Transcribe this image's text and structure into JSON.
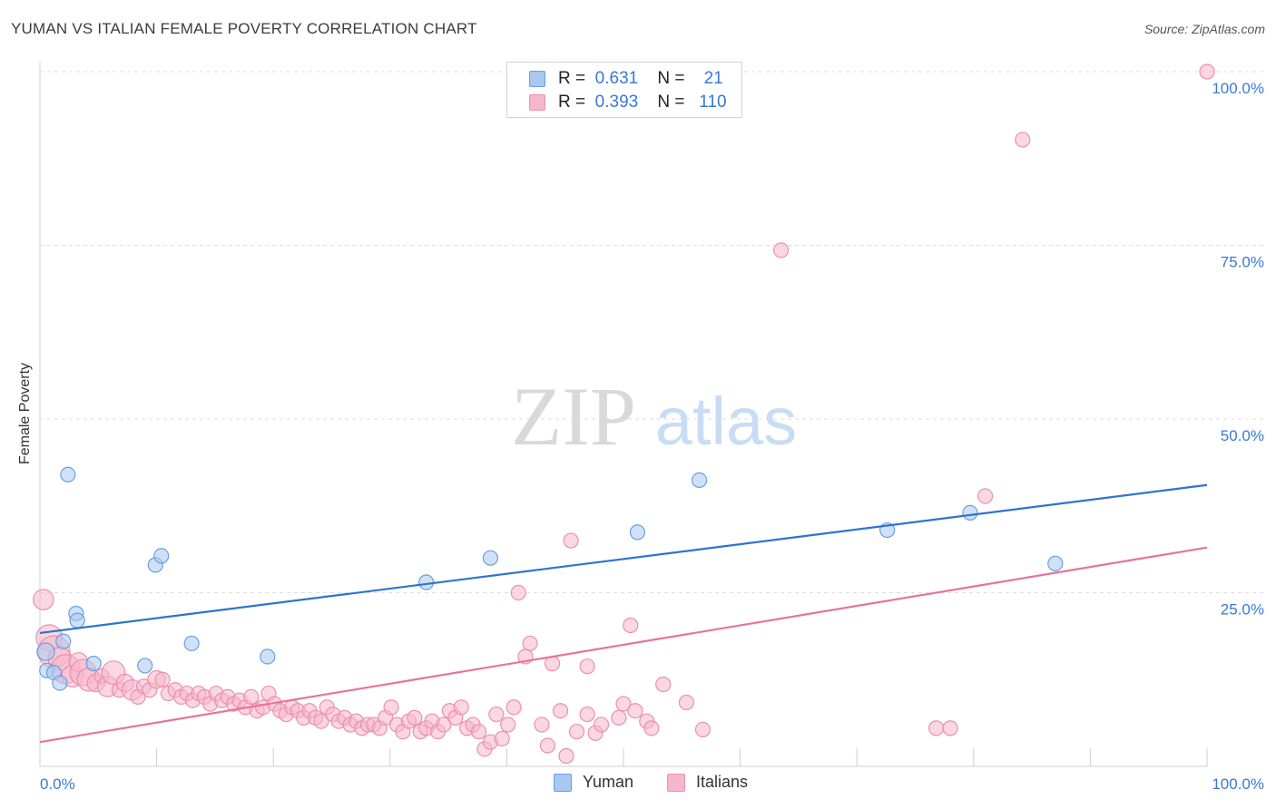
{
  "title": "YUMAN VS ITALIAN FEMALE POVERTY CORRELATION CHART",
  "source": "Source: ZipAtlas.com",
  "watermark": {
    "zip": "ZIP",
    "atlas": "atlas"
  },
  "legend": {
    "rows": [
      {
        "r_label": "R =",
        "r_value": "0.631",
        "n_label": "N =",
        "n_value": "21"
      },
      {
        "r_label": "R =",
        "r_value": "0.393",
        "n_label": "N =",
        "n_value": "110"
      }
    ]
  },
  "bottom_legend": {
    "yuman": "Yuman",
    "italians": "Italians"
  },
  "colors": {
    "yuman_fill": "#a9c8f0",
    "yuman_stroke": "#6a9fdc",
    "yuman_line": "#2f72d0",
    "italians_fill": "#f6b6cb",
    "italians_stroke": "#ec8fb0",
    "italians_line": "#e8739c",
    "tick_label": "#3a78d8",
    "grid": "#dddddd"
  },
  "chart_data": {
    "type": "scatter",
    "title": "YUMAN VS ITALIAN FEMALE POVERTY CORRELATION CHART",
    "xlabel": "",
    "ylabel": "Female Poverty",
    "xlim": [
      0,
      100
    ],
    "ylim": [
      0,
      100
    ],
    "x_tick_labels": [
      "0.0%",
      "100.0%"
    ],
    "y_ticks": [
      25,
      50,
      75,
      100
    ],
    "y_tick_labels": [
      "25.0%",
      "50.0%",
      "75.0%",
      "100.0%"
    ],
    "grid": true,
    "legend_position": "top-center",
    "series": [
      {
        "name": "Yuman",
        "r": 0.631,
        "n": 21,
        "trend": {
          "x": [
            0,
            100
          ],
          "y": [
            19.2,
            40.5
          ]
        },
        "points": [
          {
            "x": 0.5,
            "y": 16.5,
            "s": 1.2
          },
          {
            "x": 0.6,
            "y": 13.8,
            "s": 1
          },
          {
            "x": 1.2,
            "y": 13.5,
            "s": 1
          },
          {
            "x": 1.7,
            "y": 12.0,
            "s": 1
          },
          {
            "x": 2.0,
            "y": 18.0,
            "s": 1
          },
          {
            "x": 2.4,
            "y": 42.0,
            "s": 1
          },
          {
            "x": 3.1,
            "y": 22.0,
            "s": 1
          },
          {
            "x": 3.2,
            "y": 21.0,
            "s": 1
          },
          {
            "x": 4.6,
            "y": 14.8,
            "s": 1
          },
          {
            "x": 9.0,
            "y": 14.5,
            "s": 1
          },
          {
            "x": 9.9,
            "y": 29.0,
            "s": 1
          },
          {
            "x": 10.4,
            "y": 30.3,
            "s": 1
          },
          {
            "x": 13.0,
            "y": 17.7,
            "s": 1
          },
          {
            "x": 19.5,
            "y": 15.8,
            "s": 1
          },
          {
            "x": 33.1,
            "y": 26.5,
            "s": 1
          },
          {
            "x": 38.6,
            "y": 30.0,
            "s": 1
          },
          {
            "x": 51.2,
            "y": 33.7,
            "s": 1
          },
          {
            "x": 56.5,
            "y": 41.2,
            "s": 1
          },
          {
            "x": 72.6,
            "y": 34.0,
            "s": 1
          },
          {
            "x": 79.7,
            "y": 36.5,
            "s": 1
          },
          {
            "x": 87.0,
            "y": 29.2,
            "s": 1
          }
        ]
      },
      {
        "name": "Italians",
        "r": 0.393,
        "n": 110,
        "trend": {
          "x": [
            0,
            100
          ],
          "y": [
            3.5,
            31.5
          ]
        },
        "points": [
          {
            "x": 0.3,
            "y": 24.0,
            "s": 1.4
          },
          {
            "x": 0.8,
            "y": 18.5,
            "s": 1.8
          },
          {
            "x": 1.2,
            "y": 16.5,
            "s": 2.2
          },
          {
            "x": 1.7,
            "y": 15.5,
            "s": 1.6
          },
          {
            "x": 2.2,
            "y": 14.0,
            "s": 2.0
          },
          {
            "x": 2.8,
            "y": 13.0,
            "s": 1.5
          },
          {
            "x": 3.3,
            "y": 15.0,
            "s": 1.3
          },
          {
            "x": 3.7,
            "y": 13.5,
            "s": 1.8
          },
          {
            "x": 4.2,
            "y": 12.5,
            "s": 1.6
          },
          {
            "x": 4.8,
            "y": 12.0,
            "s": 1.2
          },
          {
            "x": 5.3,
            "y": 13.0,
            "s": 1.0
          },
          {
            "x": 5.8,
            "y": 11.5,
            "s": 1.4
          },
          {
            "x": 6.3,
            "y": 13.5,
            "s": 1.6
          },
          {
            "x": 6.8,
            "y": 11.0,
            "s": 1.0
          },
          {
            "x": 7.3,
            "y": 12.0,
            "s": 1.2
          },
          {
            "x": 7.9,
            "y": 11.0,
            "s": 1.4
          },
          {
            "x": 8.4,
            "y": 10.0,
            "s": 1.0
          },
          {
            "x": 8.9,
            "y": 11.5,
            "s": 1.0
          },
          {
            "x": 9.4,
            "y": 11.0,
            "s": 1.0
          },
          {
            "x": 10.0,
            "y": 12.5,
            "s": 1.2
          },
          {
            "x": 10.5,
            "y": 12.5,
            "s": 1.0
          },
          {
            "x": 11.0,
            "y": 10.5,
            "s": 1.0
          },
          {
            "x": 11.6,
            "y": 11.0,
            "s": 1.0
          },
          {
            "x": 12.1,
            "y": 10.0,
            "s": 1.0
          },
          {
            "x": 12.6,
            "y": 10.5,
            "s": 1.0
          },
          {
            "x": 13.1,
            "y": 9.5,
            "s": 1.0
          },
          {
            "x": 13.6,
            "y": 10.5,
            "s": 1.0
          },
          {
            "x": 14.1,
            "y": 10.0,
            "s": 1.0
          },
          {
            "x": 14.6,
            "y": 9.0,
            "s": 1.0
          },
          {
            "x": 15.1,
            "y": 10.5,
            "s": 1.0
          },
          {
            "x": 15.6,
            "y": 9.5,
            "s": 1.0
          },
          {
            "x": 16.1,
            "y": 10.0,
            "s": 1.0
          },
          {
            "x": 16.6,
            "y": 9.0,
            "s": 1.0
          },
          {
            "x": 17.1,
            "y": 9.5,
            "s": 1.0
          },
          {
            "x": 17.6,
            "y": 8.5,
            "s": 1.0
          },
          {
            "x": 18.1,
            "y": 10.0,
            "s": 1.0
          },
          {
            "x": 18.6,
            "y": 8.0,
            "s": 1.0
          },
          {
            "x": 19.1,
            "y": 8.5,
            "s": 1.0
          },
          {
            "x": 19.6,
            "y": 10.5,
            "s": 1.0
          },
          {
            "x": 20.1,
            "y": 9.0,
            "s": 1.0
          },
          {
            "x": 20.6,
            "y": 8.0,
            "s": 1.0
          },
          {
            "x": 21.1,
            "y": 7.5,
            "s": 1.0
          },
          {
            "x": 21.6,
            "y": 8.5,
            "s": 1.0
          },
          {
            "x": 22.1,
            "y": 8.0,
            "s": 1.0
          },
          {
            "x": 22.6,
            "y": 7.0,
            "s": 1.0
          },
          {
            "x": 23.1,
            "y": 8.0,
            "s": 1.0
          },
          {
            "x": 23.6,
            "y": 7.0,
            "s": 1.0
          },
          {
            "x": 24.1,
            "y": 6.5,
            "s": 1.0
          },
          {
            "x": 24.6,
            "y": 8.5,
            "s": 1.0
          },
          {
            "x": 25.1,
            "y": 7.5,
            "s": 1.0
          },
          {
            "x": 25.6,
            "y": 6.5,
            "s": 1.0
          },
          {
            "x": 26.1,
            "y": 7.0,
            "s": 1.0
          },
          {
            "x": 26.6,
            "y": 6.0,
            "s": 1.0
          },
          {
            "x": 27.1,
            "y": 6.5,
            "s": 1.0
          },
          {
            "x": 27.6,
            "y": 5.5,
            "s": 1.0
          },
          {
            "x": 28.1,
            "y": 6.0,
            "s": 1.0
          },
          {
            "x": 28.6,
            "y": 6.0,
            "s": 1.0
          },
          {
            "x": 29.1,
            "y": 5.5,
            "s": 1.0
          },
          {
            "x": 29.6,
            "y": 7.0,
            "s": 1.0
          },
          {
            "x": 30.1,
            "y": 8.5,
            "s": 1.0
          },
          {
            "x": 30.6,
            "y": 6.0,
            "s": 1.0
          },
          {
            "x": 31.1,
            "y": 5.0,
            "s": 1.0
          },
          {
            "x": 31.6,
            "y": 6.5,
            "s": 1.0
          },
          {
            "x": 32.1,
            "y": 7.0,
            "s": 1.0
          },
          {
            "x": 32.6,
            "y": 5.0,
            "s": 1.0
          },
          {
            "x": 33.1,
            "y": 5.5,
            "s": 1.0
          },
          {
            "x": 33.6,
            "y": 6.5,
            "s": 1.0
          },
          {
            "x": 34.1,
            "y": 5.0,
            "s": 1.0
          },
          {
            "x": 34.6,
            "y": 6.0,
            "s": 1.0
          },
          {
            "x": 35.1,
            "y": 8.0,
            "s": 1.0
          },
          {
            "x": 35.6,
            "y": 7.0,
            "s": 1.0
          },
          {
            "x": 36.1,
            "y": 8.5,
            "s": 1.0
          },
          {
            "x": 36.6,
            "y": 5.5,
            "s": 1.0
          },
          {
            "x": 37.1,
            "y": 6.0,
            "s": 1.0
          },
          {
            "x": 37.6,
            "y": 5.0,
            "s": 1.0
          },
          {
            "x": 38.1,
            "y": 2.5,
            "s": 1.0
          },
          {
            "x": 38.6,
            "y": 3.5,
            "s": 1.0
          },
          {
            "x": 39.1,
            "y": 7.5,
            "s": 1.0
          },
          {
            "x": 39.6,
            "y": 4.0,
            "s": 1.0
          },
          {
            "x": 40.1,
            "y": 6.0,
            "s": 1.0
          },
          {
            "x": 40.6,
            "y": 8.5,
            "s": 1.0
          },
          {
            "x": 41.0,
            "y": 25.0,
            "s": 1.0
          },
          {
            "x": 41.6,
            "y": 15.8,
            "s": 1.0
          },
          {
            "x": 42.0,
            "y": 17.7,
            "s": 1.0
          },
          {
            "x": 43.0,
            "y": 6.0,
            "s": 1.0
          },
          {
            "x": 43.5,
            "y": 3.0,
            "s": 1.0
          },
          {
            "x": 43.9,
            "y": 14.8,
            "s": 1.0
          },
          {
            "x": 44.6,
            "y": 8.0,
            "s": 1.0
          },
          {
            "x": 45.1,
            "y": 1.5,
            "s": 1.0
          },
          {
            "x": 45.5,
            "y": 32.5,
            "s": 1.0
          },
          {
            "x": 46.0,
            "y": 5.0,
            "s": 1.0
          },
          {
            "x": 46.9,
            "y": 14.4,
            "s": 1.0
          },
          {
            "x": 46.9,
            "y": 7.5,
            "s": 1.0
          },
          {
            "x": 47.6,
            "y": 4.8,
            "s": 1.0
          },
          {
            "x": 48.1,
            "y": 6.0,
            "s": 1.0
          },
          {
            "x": 49.6,
            "y": 7.0,
            "s": 1.0
          },
          {
            "x": 50.0,
            "y": 9.0,
            "s": 1.0
          },
          {
            "x": 50.6,
            "y": 20.3,
            "s": 1.0
          },
          {
            "x": 51.0,
            "y": 8.0,
            "s": 1.0
          },
          {
            "x": 52.0,
            "y": 6.5,
            "s": 1.0
          },
          {
            "x": 52.4,
            "y": 5.5,
            "s": 1.0
          },
          {
            "x": 53.4,
            "y": 11.8,
            "s": 1.0
          },
          {
            "x": 55.4,
            "y": 9.2,
            "s": 1.0
          },
          {
            "x": 56.8,
            "y": 5.3,
            "s": 1.0
          },
          {
            "x": 63.5,
            "y": 74.3,
            "s": 1.0
          },
          {
            "x": 76.8,
            "y": 5.5,
            "s": 1.0
          },
          {
            "x": 78.0,
            "y": 5.5,
            "s": 1.0
          },
          {
            "x": 81.0,
            "y": 38.9,
            "s": 1.0
          },
          {
            "x": 84.2,
            "y": 90.2,
            "s": 1.0
          },
          {
            "x": 100.0,
            "y": 100.0,
            "s": 1.0
          }
        ]
      }
    ]
  }
}
